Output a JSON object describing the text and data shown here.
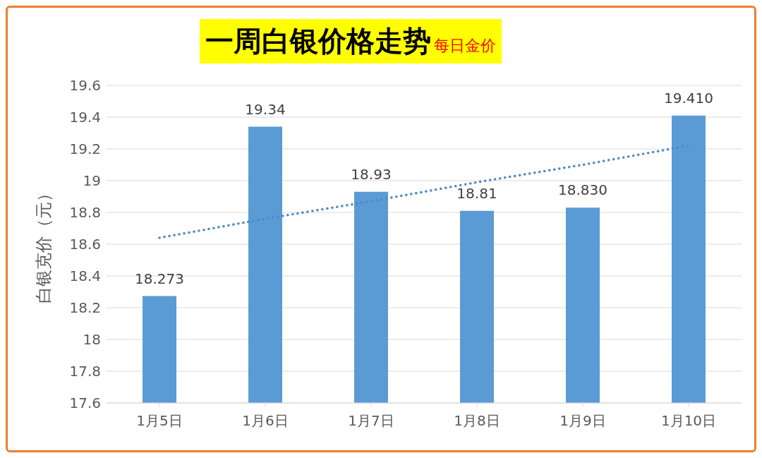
{
  "chart_data": {
    "type": "bar",
    "title": "一周白银价格走势",
    "subtitle": "每日金价",
    "ylabel": "白银克价（元）",
    "categories": [
      "1月5日",
      "1月6日",
      "1月7日",
      "1月8日",
      "1月9日",
      "1月10日"
    ],
    "series": [
      {
        "color": "#5b9bd5",
        "values": [
          18.273,
          19.34,
          18.93,
          18.81,
          18.83,
          19.41
        ],
        "value_labels": [
          "18.273",
          "19.34",
          "18.93",
          "18.81",
          "18.830",
          "19.410"
        ]
      },
      {
        "type": "line",
        "color": "#4a8bca",
        "line_style": "dotted",
        "marker": "none",
        "values": [
          18.64,
          18.76,
          18.87,
          18.99,
          19.1,
          19.22
        ]
      }
    ],
    "ylim": [
      17.6,
      19.6
    ],
    "yticks": [
      17.6,
      17.8,
      18,
      18.2,
      18.4,
      18.6,
      18.8,
      19,
      19.2,
      19.4,
      19.6
    ],
    "grid": "y",
    "legend": false
  }
}
